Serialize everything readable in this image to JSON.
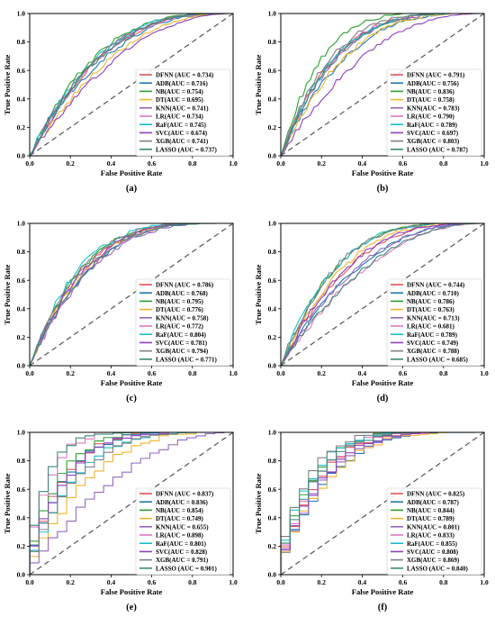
{
  "chart_data": [
    {
      "type": "line",
      "panel_label": "(a)",
      "xlabel": "False Positive Rate",
      "ylabel": "True Positive Rate",
      "xlim": [
        0,
        1
      ],
      "ylim": [
        0,
        1
      ],
      "ticks": [
        "0.0",
        "0.2",
        "0.4",
        "0.6",
        "0.8",
        "1.0"
      ],
      "legend_position": "lower-right",
      "series": [
        {
          "name": "DFNN",
          "label": "DFNN (AUC = 0.734)",
          "auc": 0.734,
          "color": "#e15759"
        },
        {
          "name": "ADB",
          "label": "ADB(AUC = 0.716)",
          "auc": 0.716,
          "color": "#1f77b4"
        },
        {
          "name": "NB",
          "label": "NB(AUC = 0.754)",
          "auc": 0.754,
          "color": "#2ca02c"
        },
        {
          "name": "DT",
          "label": "DT(AUC = 0.695)",
          "auc": 0.695,
          "color": "#f0b429"
        },
        {
          "name": "KNN",
          "label": "KNN(AUC = 0.741)",
          "auc": 0.741,
          "color": "#9467bd"
        },
        {
          "name": "LR",
          "label": "LR(AUC = 0.734)",
          "auc": 0.734,
          "color": "#e377c2"
        },
        {
          "name": "RaF",
          "label": "RaF(AUC = 0.745)",
          "auc": 0.745,
          "color": "#17becf"
        },
        {
          "name": "SVC",
          "label": "SVC(AUC = 0.674)",
          "auc": 0.674,
          "color": "#8c3fc0"
        },
        {
          "name": "XGB",
          "label": "XGB(AUC = 0.741)",
          "auc": 0.741,
          "color": "#7f7f7f"
        },
        {
          "name": "LASSO",
          "label": "LASSO (AUC = 0.737)",
          "auc": 0.737,
          "color": "#3a8a7a"
        }
      ]
    },
    {
      "type": "line",
      "panel_label": "(b)",
      "xlabel": "False Positive Rate",
      "ylabel": "True Positive Rate",
      "xlim": [
        0,
        1
      ],
      "ylim": [
        0,
        1
      ],
      "ticks": [
        "0.0",
        "0.2",
        "0.4",
        "0.6",
        "0.8",
        "1.0"
      ],
      "legend_position": "lower-right",
      "series": [
        {
          "name": "DFNN",
          "label": "DFNN (AUC = 0.791)",
          "auc": 0.791,
          "color": "#e15759"
        },
        {
          "name": "ADB",
          "label": "ADB(AUC = 0.756)",
          "auc": 0.756,
          "color": "#1f77b4"
        },
        {
          "name": "NB",
          "label": "NB(AUC = 0.836)",
          "auc": 0.836,
          "color": "#2ca02c"
        },
        {
          "name": "DT",
          "label": "DT(AUC = 0.758)",
          "auc": 0.758,
          "color": "#f0b429"
        },
        {
          "name": "KNN",
          "label": "KNN(AUC = 0.783)",
          "auc": 0.783,
          "color": "#9467bd"
        },
        {
          "name": "LR",
          "label": "LR(AUC = 0.790)",
          "auc": 0.79,
          "color": "#e377c2"
        },
        {
          "name": "RaF",
          "label": "RaF(AUC = 0.789)",
          "auc": 0.789,
          "color": "#17becf"
        },
        {
          "name": "SVC",
          "label": "SVC(AUC = 0.697)",
          "auc": 0.697,
          "color": "#8c3fc0"
        },
        {
          "name": "XGB",
          "label": "XGB(AUC = 0.803)",
          "auc": 0.803,
          "color": "#7f7f7f"
        },
        {
          "name": "LASSO",
          "label": "LASSO (AUC = 0.787)",
          "auc": 0.787,
          "color": "#3a8a7a"
        }
      ]
    },
    {
      "type": "line",
      "panel_label": "(c)",
      "xlabel": "False Positive Rate",
      "ylabel": "True Positive Rate",
      "xlim": [
        0,
        1
      ],
      "ylim": [
        0,
        1
      ],
      "ticks": [
        "0.0",
        "0.2",
        "0.4",
        "0.6",
        "0.8",
        "1.0"
      ],
      "legend_position": "lower-right",
      "series": [
        {
          "name": "DFNN",
          "label": "DFNN (AUC = 0.786)",
          "auc": 0.786,
          "color": "#e15759"
        },
        {
          "name": "ADB",
          "label": "ADB(AUC = 0.768)",
          "auc": 0.768,
          "color": "#1f77b4"
        },
        {
          "name": "NB",
          "label": "NB(AUC = 0.795)",
          "auc": 0.795,
          "color": "#2ca02c"
        },
        {
          "name": "DT",
          "label": "DT(AUC = 0.776)",
          "auc": 0.776,
          "color": "#f0b429"
        },
        {
          "name": "KNN",
          "label": "KNN(AUC = 0.758)",
          "auc": 0.758,
          "color": "#9467bd"
        },
        {
          "name": "LR",
          "label": "LR(AUC = 0.772)",
          "auc": 0.772,
          "color": "#e377c2"
        },
        {
          "name": "RaF",
          "label": "RaF(AUC = 0.804)",
          "auc": 0.804,
          "color": "#17becf"
        },
        {
          "name": "SVC",
          "label": "SVC(AUC = 0.781)",
          "auc": 0.781,
          "color": "#8c3fc0"
        },
        {
          "name": "XGB",
          "label": "XGB(AUC = 0.794)",
          "auc": 0.794,
          "color": "#7f7f7f"
        },
        {
          "name": "LASSO",
          "label": "LASSO (AUC = 0.771)",
          "auc": 0.771,
          "color": "#3a8a7a"
        }
      ]
    },
    {
      "type": "line",
      "panel_label": "(d)",
      "xlabel": "False Positive Rate",
      "ylabel": "True Positive Rate",
      "xlim": [
        0,
        1
      ],
      "ylim": [
        0,
        1
      ],
      "ticks": [
        "0.0",
        "0.2",
        "0.4",
        "0.6",
        "0.8",
        "1.0"
      ],
      "legend_position": "lower-right",
      "series": [
        {
          "name": "DFNN",
          "label": "DFNN (AUC = 0.744)",
          "auc": 0.744,
          "color": "#e15759"
        },
        {
          "name": "ADB",
          "label": "ADB(AUC = 0.710)",
          "auc": 0.71,
          "color": "#1f77b4"
        },
        {
          "name": "NB",
          "label": "NB(AUC = 0.786)",
          "auc": 0.786,
          "color": "#2ca02c"
        },
        {
          "name": "DT",
          "label": "DT(AUC = 0.763)",
          "auc": 0.763,
          "color": "#f0b429"
        },
        {
          "name": "KNN",
          "label": "KNN(AUC = 0.713)",
          "auc": 0.713,
          "color": "#9467bd"
        },
        {
          "name": "LR",
          "label": "LR(AUC = 0.681)",
          "auc": 0.681,
          "color": "#e377c2"
        },
        {
          "name": "RaF",
          "label": "RaF(AUC = 0.789)",
          "auc": 0.789,
          "color": "#17becf"
        },
        {
          "name": "SVC",
          "label": "SVC(AUC = 0.749)",
          "auc": 0.749,
          "color": "#8c3fc0"
        },
        {
          "name": "XGB",
          "label": "XGB(AUC = 0.788)",
          "auc": 0.788,
          "color": "#7f7f7f"
        },
        {
          "name": "LASSO",
          "label": "LASSO (AUC = 0.685)",
          "auc": 0.685,
          "color": "#3a8a7a"
        }
      ]
    },
    {
      "type": "line",
      "panel_label": "(e)",
      "xlabel": "False Positive Rate",
      "ylabel": "True Positive Rate",
      "xlim": [
        0,
        1
      ],
      "ylim": [
        0,
        1
      ],
      "ticks": [
        "0.0",
        "0.2",
        "0.4",
        "0.6",
        "0.8",
        "1.0"
      ],
      "legend_position": "lower-right",
      "series": [
        {
          "name": "DFNN",
          "label": "DFNN (AUC = 0.837)",
          "auc": 0.837,
          "color": "#e15759"
        },
        {
          "name": "ADB",
          "label": "ADB(AUC = 0.836)",
          "auc": 0.836,
          "color": "#1f77b4"
        },
        {
          "name": "NB",
          "label": "NB(AUC = 0.854)",
          "auc": 0.854,
          "color": "#2ca02c"
        },
        {
          "name": "DT",
          "label": "DT(AUC = 0.749)",
          "auc": 0.749,
          "color": "#f0b429"
        },
        {
          "name": "KNN",
          "label": "KNN(AUC = 0.655)",
          "auc": 0.655,
          "color": "#9467bd"
        },
        {
          "name": "LR",
          "label": "LR(AUC = 0.898)",
          "auc": 0.898,
          "color": "#e377c2"
        },
        {
          "name": "RaF",
          "label": "RaF(AUC = 0.801)",
          "auc": 0.801,
          "color": "#17becf"
        },
        {
          "name": "SVC",
          "label": "SVC(AUC = 0.828)",
          "auc": 0.828,
          "color": "#8c3fc0"
        },
        {
          "name": "XGB",
          "label": "XGB(AUC = 0.791)",
          "auc": 0.791,
          "color": "#7f7f7f"
        },
        {
          "name": "LASSO",
          "label": "LASSO (AUC = 0.901)",
          "auc": 0.901,
          "color": "#3a8a7a"
        }
      ]
    },
    {
      "type": "line",
      "panel_label": "(f)",
      "xlabel": "False Positive Rate",
      "ylabel": "True Positive Rate",
      "xlim": [
        0,
        1
      ],
      "ylim": [
        0,
        1
      ],
      "ticks": [
        "0.0",
        "0.2",
        "0.4",
        "0.6",
        "0.8",
        "1.0"
      ],
      "legend_position": "lower-right",
      "series": [
        {
          "name": "DFNN",
          "label": "DFNN (AUC = 0.825)",
          "auc": 0.825,
          "color": "#e15759"
        },
        {
          "name": "ADB",
          "label": "ADB(AUC = 0.787)",
          "auc": 0.787,
          "color": "#1f77b4"
        },
        {
          "name": "NB",
          "label": "NB(AUC = 0.844)",
          "auc": 0.844,
          "color": "#2ca02c"
        },
        {
          "name": "DT",
          "label": "DT(AUC = 0.789)",
          "auc": 0.789,
          "color": "#f0b429"
        },
        {
          "name": "KNN",
          "label": "KNN(AUC = 0.801)",
          "auc": 0.801,
          "color": "#9467bd"
        },
        {
          "name": "LR",
          "label": "LR(AUC = 0.833)",
          "auc": 0.833,
          "color": "#e377c2"
        },
        {
          "name": "RaF",
          "label": "RaF(AUC = 0.855)",
          "auc": 0.855,
          "color": "#17becf"
        },
        {
          "name": "SVC",
          "label": "SVC(AUC = 0.808)",
          "auc": 0.808,
          "color": "#8c3fc0"
        },
        {
          "name": "XGB",
          "label": "XGB(AUC = 0.869)",
          "auc": 0.869,
          "color": "#7f7f7f"
        },
        {
          "name": "LASSO",
          "label": "LASSO (AUC = 0.840)",
          "auc": 0.84,
          "color": "#3a8a7a"
        }
      ]
    }
  ]
}
